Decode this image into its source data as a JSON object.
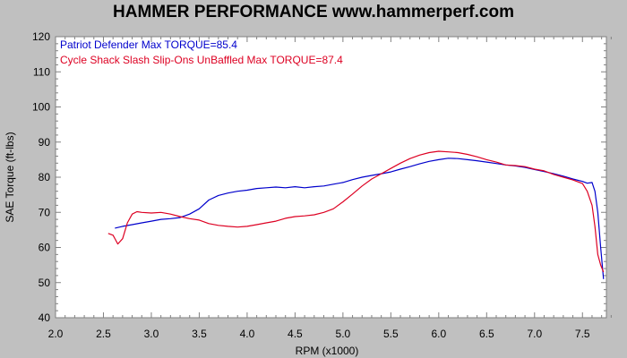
{
  "chart_data": {
    "type": "line",
    "title": "HAMMER PERFORMANCE www.hammerperf.com",
    "xlabel": "RPM (x1000)",
    "ylabel": "SAE Torque (ft-lbs)",
    "xlim": [
      2.0,
      7.75
    ],
    "ylim": [
      40,
      120
    ],
    "x_ticks": [
      "2.0",
      "2.5",
      "3.0",
      "3.5",
      "4.0",
      "4.5",
      "5.0",
      "5.5",
      "6.0",
      "6.5",
      "7.0",
      "7.5"
    ],
    "y_ticks": [
      "40",
      "50",
      "60",
      "70",
      "80",
      "90",
      "100",
      "110",
      "120"
    ],
    "grid": false,
    "legend_position": "top-left",
    "series": [
      {
        "name": "Patriot Defender  Max TORQUE=85.4",
        "color": "#0000cc",
        "x": [
          2.62,
          2.7,
          2.8,
          2.9,
          3.0,
          3.1,
          3.2,
          3.3,
          3.4,
          3.5,
          3.6,
          3.7,
          3.8,
          3.9,
          4.0,
          4.1,
          4.2,
          4.3,
          4.4,
          4.5,
          4.6,
          4.7,
          4.8,
          4.9,
          5.0,
          5.1,
          5.2,
          5.3,
          5.4,
          5.5,
          5.6,
          5.7,
          5.8,
          5.9,
          6.0,
          6.1,
          6.2,
          6.3,
          6.4,
          6.5,
          6.6,
          6.7,
          6.8,
          6.9,
          7.0,
          7.1,
          7.2,
          7.3,
          7.4,
          7.5,
          7.55,
          7.6,
          7.63,
          7.66,
          7.69,
          7.72
        ],
        "y": [
          65.5,
          66.0,
          66.5,
          67.0,
          67.5,
          68.0,
          68.2,
          68.5,
          69.5,
          71.0,
          73.5,
          74.8,
          75.5,
          76.0,
          76.3,
          76.8,
          77.0,
          77.2,
          77.0,
          77.3,
          77.0,
          77.3,
          77.5,
          78.0,
          78.5,
          79.3,
          80.0,
          80.5,
          81.0,
          81.5,
          82.3,
          83.0,
          83.8,
          84.5,
          85.0,
          85.4,
          85.3,
          85.0,
          84.7,
          84.3,
          83.9,
          83.5,
          83.2,
          82.8,
          82.2,
          81.6,
          81.0,
          80.3,
          79.5,
          78.8,
          78.3,
          78.5,
          76.0,
          70.0,
          60.0,
          51.0
        ]
      },
      {
        "name": "Cycle Shack Slash Slip-Ons UnBaffled  Max TORQUE=87.4",
        "color": "#dd0022",
        "x": [
          2.55,
          2.6,
          2.65,
          2.7,
          2.75,
          2.8,
          2.85,
          2.9,
          3.0,
          3.1,
          3.2,
          3.3,
          3.4,
          3.5,
          3.6,
          3.7,
          3.8,
          3.9,
          4.0,
          4.1,
          4.2,
          4.3,
          4.4,
          4.5,
          4.6,
          4.7,
          4.8,
          4.9,
          5.0,
          5.1,
          5.2,
          5.3,
          5.4,
          5.5,
          5.6,
          5.7,
          5.8,
          5.9,
          6.0,
          6.1,
          6.2,
          6.3,
          6.4,
          6.5,
          6.6,
          6.7,
          6.8,
          6.9,
          7.0,
          7.1,
          7.2,
          7.3,
          7.4,
          7.5,
          7.55,
          7.6,
          7.63,
          7.66,
          7.69,
          7.72
        ],
        "y": [
          64.0,
          63.5,
          61.0,
          62.5,
          67.0,
          69.5,
          70.2,
          70.0,
          69.8,
          70.0,
          69.5,
          68.8,
          68.2,
          67.8,
          66.8,
          66.3,
          66.0,
          65.8,
          66.0,
          66.5,
          67.0,
          67.5,
          68.3,
          68.8,
          69.0,
          69.3,
          70.0,
          71.0,
          73.0,
          75.2,
          77.5,
          79.5,
          81.0,
          82.5,
          84.0,
          85.3,
          86.3,
          87.0,
          87.4,
          87.2,
          87.0,
          86.5,
          85.8,
          85.0,
          84.3,
          83.5,
          83.3,
          83.0,
          82.3,
          81.8,
          80.8,
          80.0,
          79.2,
          78.2,
          76.0,
          72.0,
          66.0,
          58.0,
          55.0,
          53.0
        ]
      }
    ]
  }
}
